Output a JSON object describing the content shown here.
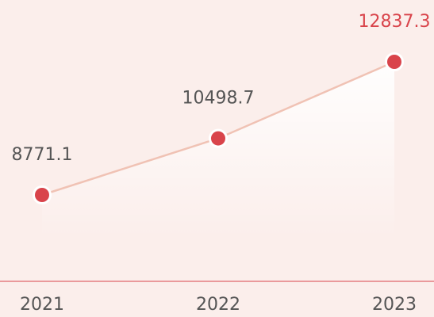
{
  "chart_data": {
    "type": "line",
    "categories": [
      "2021",
      "2022",
      "2023"
    ],
    "values": [
      8771.1,
      10498.7,
      12837.3
    ],
    "color": "#f0c2b4",
    "marker_color": "#d9444b",
    "label_color": "#555555",
    "highlight_label_color": "#d9444b",
    "axis_color": "#d9444b"
  }
}
